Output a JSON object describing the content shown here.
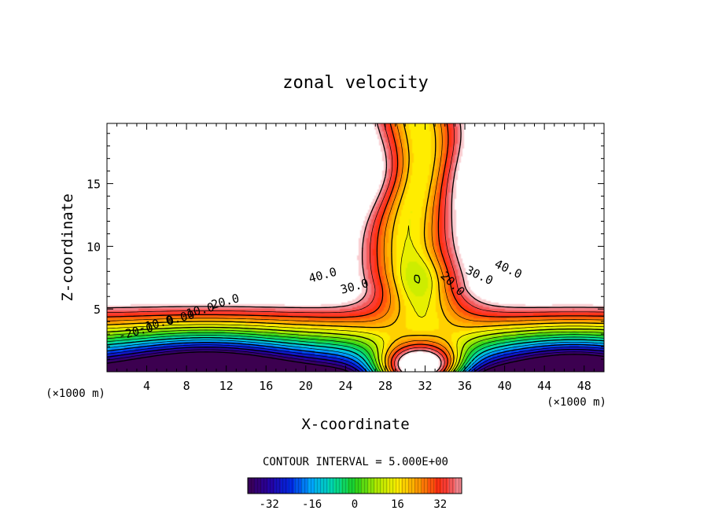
{
  "chart_data": {
    "type": "heatmap",
    "title": "zonal velocity",
    "xlabel": "X-coordinate",
    "ylabel": "Z-coordinate",
    "x_unit_left": "(×1000 m)",
    "x_unit_right": "(×1000 m)",
    "xlim": [
      0,
      50
    ],
    "ylim": [
      0,
      19.8
    ],
    "x_ticks": [
      4,
      8,
      12,
      16,
      20,
      24,
      28,
      32,
      36,
      40,
      44,
      48
    ],
    "x_tick_labels": [
      "4",
      "8",
      "12",
      "16",
      "20",
      "24",
      "28",
      "32",
      "36",
      "40",
      "44",
      "48"
    ],
    "y_ticks": [
      5,
      10,
      15
    ],
    "y_tick_labels": [
      "5",
      "10",
      "15"
    ],
    "contour_interval_text": "CONTOUR INTERVAL = 5.000E+00",
    "contour_labels": [
      {
        "text": "40.0",
        "x": 21.8,
        "z": 7.4
      },
      {
        "text": "30.0",
        "x": 25.0,
        "z": 6.5
      },
      {
        "text": "20.0",
        "x": 12.0,
        "z": 5.3
      },
      {
        "text": "10.0",
        "x": 9.5,
        "z": 4.6
      },
      {
        "text": "0.00",
        "x": 7.5,
        "z": 4.0
      },
      {
        "text": "-10.0",
        "x": 5.0,
        "z": 3.5
      },
      {
        "text": "-20.0",
        "x": 3.0,
        "z": 2.9
      },
      {
        "text": "20.0",
        "x": 34.5,
        "z": 6.8
      },
      {
        "text": "30.0",
        "x": 37.3,
        "z": 7.4
      },
      {
        "text": "40.0",
        "x": 40.2,
        "z": 7.9
      }
    ],
    "colorbar": {
      "min": -40,
      "max": 40,
      "ticks": [
        -32,
        -16,
        0,
        16,
        32
      ],
      "tick_labels": [
        "-32",
        "-16",
        "0",
        "16",
        "32"
      ]
    },
    "grid": false
  }
}
